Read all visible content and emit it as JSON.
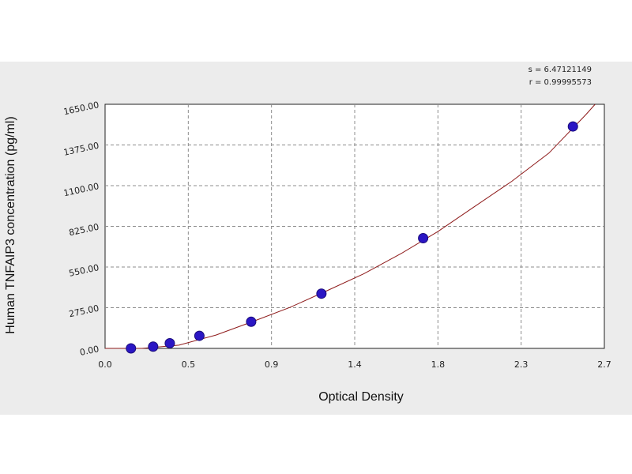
{
  "chart_data": {
    "type": "scatter",
    "xlabel": "Optical Density",
    "ylabel": "Human TNFAIP3 concentration (pg/ml)",
    "x_ticks": [
      "0.0",
      "0.5",
      "0.9",
      "1.4",
      "1.8",
      "2.3",
      "2.7"
    ],
    "y_ticks": [
      "0.00",
      "275.00",
      "550.00",
      "825.00",
      "1100.00",
      "1375.00",
      "1650.00"
    ],
    "xlim": [
      0,
      2.7
    ],
    "ylim": [
      0,
      1650
    ],
    "grid": true,
    "stats": {
      "s_line": "s = 6.47121149",
      "r_line": "r = 0.99995573"
    },
    "points": [
      {
        "x": 0.14,
        "y": 0
      },
      {
        "x": 0.26,
        "y": 12
      },
      {
        "x": 0.35,
        "y": 35
      },
      {
        "x": 0.51,
        "y": 85
      },
      {
        "x": 0.79,
        "y": 180
      },
      {
        "x": 1.17,
        "y": 370
      },
      {
        "x": 1.72,
        "y": 745
      },
      {
        "x": 2.53,
        "y": 1500
      }
    ],
    "fit_curve": {
      "x": [
        0.0,
        0.2,
        0.4,
        0.6,
        0.8,
        1.0,
        1.2,
        1.4,
        1.6,
        1.8,
        2.0,
        2.2,
        2.4,
        2.6,
        2.65
      ],
      "y": [
        -20,
        -5,
        22,
        90,
        182,
        277,
        390,
        505,
        640,
        790,
        960,
        1130,
        1320,
        1580,
        1650
      ]
    },
    "colors": {
      "point": "#2b16c4",
      "curve": "#8e1a1a",
      "grid": "#8c8c8c",
      "band": "#ececec"
    }
  }
}
